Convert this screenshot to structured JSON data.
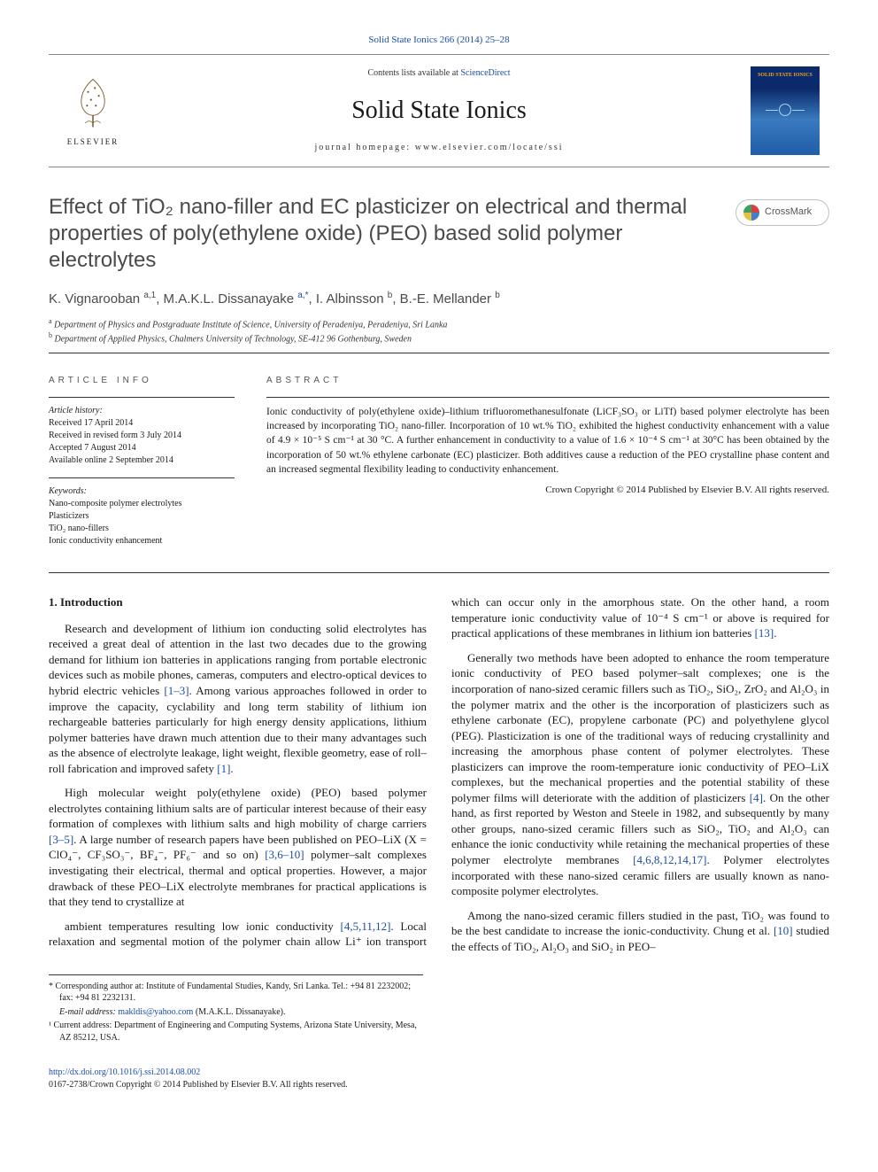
{
  "top_link": "Solid State Ionics 266 (2014) 25–28",
  "header": {
    "contents_prefix": "Contents lists available at ",
    "contents_link": "ScienceDirect",
    "journal_name": "Solid State Ionics",
    "homepage_prefix": "journal homepage: ",
    "homepage_url": "www.elsevier.com/locate/ssi",
    "publisher_label": "ELSEVIER",
    "cover_label": "SOLID STATE IONICS"
  },
  "title": "Effect of TiO₂ nano-filler and EC plasticizer on electrical and thermal properties of poly(ethylene oxide) (PEO) based solid polymer electrolytes",
  "crossmark_label": "CrossMark",
  "authors_html": "K. Vignarooban <sup>a,1</sup>, M.A.K.L. Dissanayake <sup class=\"corr\">a,*</sup>, I. Albinsson <sup>b</sup>, B.-E. Mellander <sup>b</sup>",
  "affiliations": [
    {
      "sup": "a",
      "text": "Department of Physics and Postgraduate Institute of Science, University of Peradeniya, Peradeniya, Sri Lanka"
    },
    {
      "sup": "b",
      "text": "Department of Applied Physics, Chalmers University of Technology, SE-412 96 Gothenburg, Sweden"
    }
  ],
  "article_info_heading": "ARTICLE INFO",
  "abstract_heading": "ABSTRACT",
  "history_label": "Article history:",
  "history": [
    "Received 17 April 2014",
    "Received in revised form 3 July 2014",
    "Accepted 7 August 2014",
    "Available online 2 September 2014"
  ],
  "keywords_label": "Keywords:",
  "keywords": [
    "Nano-composite polymer electrolytes",
    "Plasticizers",
    "TiO₂ nano-fillers",
    "Ionic conductivity enhancement"
  ],
  "abstract": "Ionic conductivity of poly(ethylene oxide)–lithium trifluoromethanesulfonate (LiCF₃SO₃ or LiTf) based polymer electrolyte has been increased by incorporating TiO₂ nano-filler. Incorporation of 10 wt.% TiO₂ exhibited the highest conductivity enhancement with a value of 4.9 × 10⁻⁵ S cm⁻¹ at 30 °C. A further enhancement in conductivity to a value of 1.6 × 10⁻⁴ S cm⁻¹ at 30°C has been obtained by the incorporation of 50 wt.% ethylene carbonate (EC) plasticizer. Both additives cause a reduction of the PEO crystalline phase content and an increased segmental flexibility leading to conductivity enhancement.",
  "abstract_copyright": "Crown Copyright © 2014 Published by Elsevier B.V. All rights reserved.",
  "intro_heading": "1. Introduction",
  "body": {
    "p1": "Research and development of lithium ion conducting solid electrolytes has received a great deal of attention in the last two decades due to the growing demand for lithium ion batteries in applications ranging from portable electronic devices such as mobile phones, cameras, computers and electro-optical devices to hybrid electric vehicles [1–3]. Among various approaches followed in order to improve the capacity, cyclability and long term stability of lithium ion rechargeable batteries particularly for high energy density applications, lithium polymer batteries have drawn much attention due to their many advantages such as the absence of electrolyte leakage, light weight, flexible geometry, ease of roll–roll fabrication and improved safety [1].",
    "p2": "High molecular weight poly(ethylene oxide) (PEO) based polymer electrolytes containing lithium salts are of particular interest because of their easy formation of complexes with lithium salts and high mobility of charge carriers [3–5]. A large number of research papers have been published on PEO–LiX (X = ClO₄⁻, CF₃SO₃⁻, BF₄⁻, PF₆⁻ and so on) [3,6–10] polymer–salt complexes investigating their electrical, thermal and optical properties. However, a major drawback of these PEO–LiX electrolyte membranes for practical applications is that they tend to crystallize at",
    "p3": "ambient temperatures resulting low ionic conductivity [4,5,11,12]. Local relaxation and segmental motion of the polymer chain allow Li⁺ ion transport which can occur only in the amorphous state. On the other hand, a room temperature ionic conductivity value of 10⁻⁴ S cm⁻¹ or above is required for practical applications of these membranes in lithium ion batteries [13].",
    "p4": "Generally two methods have been adopted to enhance the room temperature ionic conductivity of PEO based polymer–salt complexes; one is the incorporation of nano-sized ceramic fillers such as TiO₂, SiO₂, ZrO₂ and Al₂O₃ in the polymer matrix and the other is the incorporation of plasticizers such as ethylene carbonate (EC), propylene carbonate (PC) and polyethylene glycol (PEG). Plasticization is one of the traditional ways of reducing crystallinity and increasing the amorphous phase content of polymer electrolytes. These plasticizers can improve the room-temperature ionic conductivity of PEO–LiX complexes, but the mechanical properties and the potential stability of these polymer films will deteriorate with the addition of plasticizers [4]. On the other hand, as first reported by Weston and Steele in 1982, and subsequently by many other groups, nano-sized ceramic fillers such as SiO₂, TiO₂ and Al₂O₃ can enhance the ionic conductivity while retaining the mechanical properties of these polymer electrolyte membranes [4,6,8,12,14,17]. Polymer electrolytes incorporated with these nano-sized ceramic fillers are usually known as nano-composite polymer electrolytes.",
    "p5": "Among the nano-sized ceramic fillers studied in the past, TiO₂ was found to be the best candidate to increase the ionic-conductivity. Chung et al. [10] studied the effects of TiO₂, Al₂O₃ and SiO₂ in PEO–"
  },
  "footnotes": {
    "corr": "* Corresponding author at: Institute of Fundamental Studies, Kandy, Sri Lanka. Tel.: +94 81 2232002; fax: +94 81 2232131.",
    "email_label": "E-mail address: ",
    "email": "makldis@yahoo.com",
    "email_suffix": " (M.A.K.L. Dissanayake).",
    "note1": "¹ Current address: Department of Engineering and Computing Systems, Arizona State University, Mesa, AZ 85212, USA."
  },
  "footer": {
    "doi": "http://dx.doi.org/10.1016/j.ssi.2014.08.002",
    "copyright": "0167-2738/Crown Copyright © 2014 Published by Elsevier B.V. All rights reserved."
  },
  "colors": {
    "link": "#1a4da8",
    "text": "#1a1a1a",
    "heading_gray": "#4a4a4a",
    "rule": "#333333"
  }
}
